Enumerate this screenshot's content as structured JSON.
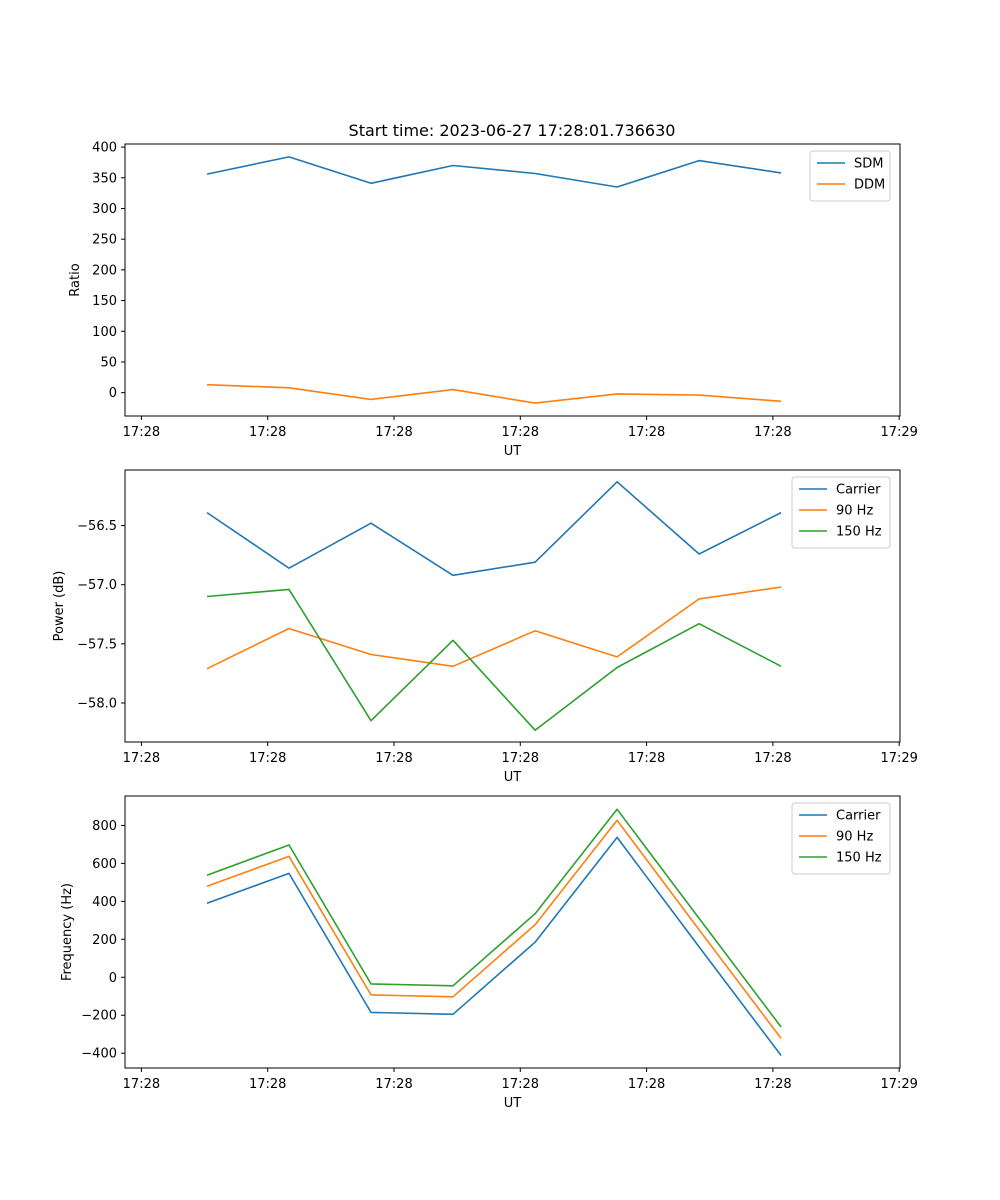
{
  "title": "Start time: 2023-06-27 17:28:01.736630",
  "chart_data": [
    {
      "type": "line",
      "xlabel": "UT",
      "ylabel": "Ratio",
      "x": [
        1,
        2,
        3,
        4,
        5,
        6,
        7,
        8
      ],
      "x_ticks": [
        {
          "x": 0.2,
          "label": "17:28"
        },
        {
          "x": 1.74,
          "label": "17:28"
        },
        {
          "x": 3.28,
          "label": "17:28"
        },
        {
          "x": 4.82,
          "label": "17:28"
        },
        {
          "x": 6.36,
          "label": "17:28"
        },
        {
          "x": 7.9,
          "label": "17:28"
        },
        {
          "x": 9.44,
          "label": "17:29"
        }
      ],
      "xlim": [
        0,
        9.45
      ],
      "ylim": [
        -38,
        405
      ],
      "y_ticks": [
        {
          "v": 400,
          "label": "400"
        },
        {
          "v": 350,
          "label": "350"
        },
        {
          "v": 300,
          "label": "300"
        },
        {
          "v": 250,
          "label": "250"
        },
        {
          "v": 200,
          "label": "200"
        },
        {
          "v": 150,
          "label": "150"
        },
        {
          "v": 100,
          "label": "100"
        },
        {
          "v": 50,
          "label": "50"
        },
        {
          "v": 0,
          "label": "0"
        }
      ],
      "legend_position": "top-right",
      "series": [
        {
          "name": "SDM",
          "color": "#1f77b4",
          "values": [
            356,
            384,
            341,
            370,
            357,
            335,
            378,
            358
          ]
        },
        {
          "name": "DDM",
          "color": "#ff7f0e",
          "values": [
            13,
            8,
            -11,
            5,
            -17,
            -2,
            -4,
            -14
          ]
        }
      ]
    },
    {
      "type": "line",
      "xlabel": "UT",
      "ylabel": "Power (dB)",
      "x": [
        1,
        2,
        3,
        4,
        5,
        6,
        7,
        8
      ],
      "x_ticks": [
        {
          "x": 0.2,
          "label": "17:28"
        },
        {
          "x": 1.74,
          "label": "17:28"
        },
        {
          "x": 3.28,
          "label": "17:28"
        },
        {
          "x": 4.82,
          "label": "17:28"
        },
        {
          "x": 6.36,
          "label": "17:28"
        },
        {
          "x": 7.9,
          "label": "17:28"
        },
        {
          "x": 9.44,
          "label": "17:29"
        }
      ],
      "xlim": [
        0,
        9.45
      ],
      "ylim": [
        -58.33,
        -56.03
      ],
      "y_ticks": [
        {
          "v": -56.5,
          "label": "−56.5"
        },
        {
          "v": -57.0,
          "label": "−57.0"
        },
        {
          "v": -57.5,
          "label": "−57.5"
        },
        {
          "v": -58.0,
          "label": "−58.0"
        }
      ],
      "legend_position": "top-right",
      "series": [
        {
          "name": "Carrier",
          "color": "#1f77b4",
          "values": [
            -56.39,
            -56.86,
            -56.48,
            -56.92,
            -56.81,
            -56.13,
            -56.74,
            -56.39
          ]
        },
        {
          "name": "90 Hz",
          "color": "#ff7f0e",
          "values": [
            -57.71,
            -57.37,
            -57.59,
            -57.69,
            -57.39,
            -57.61,
            -57.12,
            -57.02
          ]
        },
        {
          "name": "150 Hz",
          "color": "#2ca02c",
          "values": [
            -57.1,
            -57.04,
            -58.15,
            -57.47,
            -58.23,
            -57.7,
            -57.33,
            -57.69
          ]
        }
      ]
    },
    {
      "type": "line",
      "xlabel": "UT",
      "ylabel": "Frequency (Hz)",
      "x": [
        1,
        2,
        3,
        4,
        5,
        6,
        7,
        8
      ],
      "x_ticks": [
        {
          "x": 0.2,
          "label": "17:28"
        },
        {
          "x": 1.74,
          "label": "17:28"
        },
        {
          "x": 3.28,
          "label": "17:28"
        },
        {
          "x": 4.82,
          "label": "17:28"
        },
        {
          "x": 6.36,
          "label": "17:28"
        },
        {
          "x": 7.9,
          "label": "17:28"
        },
        {
          "x": 9.44,
          "label": "17:29"
        }
      ],
      "xlim": [
        0,
        9.45
      ],
      "ylim": [
        -478,
        955
      ],
      "y_ticks": [
        {
          "v": 800,
          "label": "800"
        },
        {
          "v": 600,
          "label": "600"
        },
        {
          "v": 400,
          "label": "400"
        },
        {
          "v": 200,
          "label": "200"
        },
        {
          "v": 0,
          "label": "0"
        },
        {
          "v": -200,
          "label": "−200"
        },
        {
          "v": -400,
          "label": "−400"
        }
      ],
      "legend_position": "top-right",
      "series": [
        {
          "name": "Carrier",
          "color": "#1f77b4",
          "values": [
            390,
            547,
            -185,
            -195,
            185,
            737,
            160,
            -412
          ]
        },
        {
          "name": "90 Hz",
          "color": "#ff7f0e",
          "values": [
            480,
            637,
            -93,
            -103,
            277,
            827,
            250,
            -322
          ]
        },
        {
          "name": "150 Hz",
          "color": "#2ca02c",
          "values": [
            538,
            697,
            -35,
            -45,
            335,
            885,
            310,
            -262
          ]
        }
      ]
    }
  ]
}
